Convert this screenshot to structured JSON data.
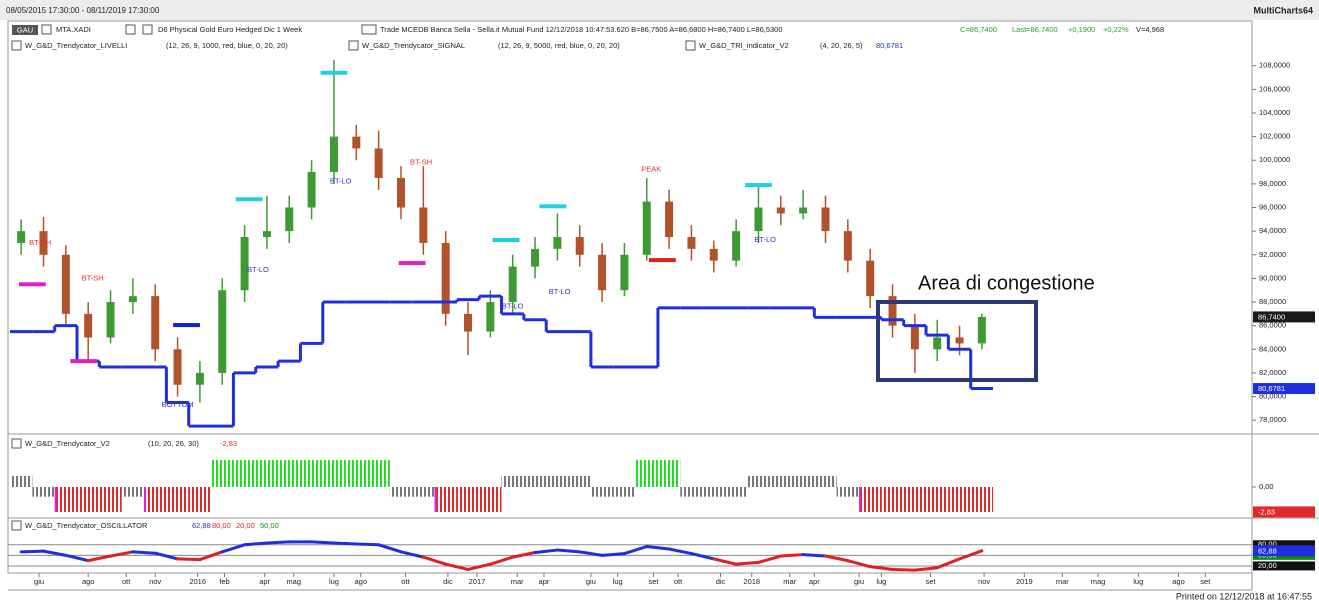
{
  "window": {
    "range": "08/05/2015 17:30:00 - 08/11/2019 17:30:00",
    "app": "MultiCharts64",
    "symbol_button": "GAU",
    "symbol": "MTA.XADI",
    "description": "D6 Physical Gold Euro Hedged Dic  1 Week",
    "quote": "Trade  MCEDB  Banca Sella - Sella.it  Mutual Fund  12/12/2018  10:47:53.620  B=86,7500  A=86,6800  H=86,7400  L=86,5300",
    "quote_close": "C=86,7400",
    "quote_last": "Last=86,7400",
    "quote_change": "+0,1900",
    "quote_pct": "+0,22%",
    "quote_volume": "V=4,968",
    "printed": "Printed on 12/12/2018 at 16:47:55"
  },
  "chart_data": [
    {
      "type": "candlestick",
      "callout": "Area di congestione",
      "studies": [
        {
          "name": "W_G&D_Trendycator_LIVELLI",
          "params": "(12, 26, 9, 1000, red, blue, 0, 20, 20)"
        },
        {
          "name": "W_G&D_Trendycator_SIGNAL",
          "params": "(12, 26, 9, 5000, red, blue, 0, 20, 20)"
        },
        {
          "name": "W_G&D_TRI_indicator_V2",
          "params": "(4, 20, 26, 5)",
          "value": "80,6781"
        }
      ],
      "xlim": [
        -0.5,
        55
      ],
      "xticks": [
        {
          "value": 0.8,
          "label": "giu"
        },
        {
          "value": 3.0,
          "label": "ago"
        },
        {
          "value": 4.7,
          "label": "ott"
        },
        {
          "value": 6.0,
          "label": "nov"
        },
        {
          "value": 7.9,
          "label": "2016"
        },
        {
          "value": 9.1,
          "label": "feb"
        },
        {
          "value": 10.9,
          "label": "apr"
        },
        {
          "value": 12.2,
          "label": "mag"
        },
        {
          "value": 14.0,
          "label": "lug"
        },
        {
          "value": 15.2,
          "label": "ago"
        },
        {
          "value": 17.2,
          "label": "ott"
        },
        {
          "value": 19.1,
          "label": "dic"
        },
        {
          "value": 20.4,
          "label": "2017"
        },
        {
          "value": 22.2,
          "label": "mar"
        },
        {
          "value": 23.4,
          "label": "apr"
        },
        {
          "value": 25.5,
          "label": "giu"
        },
        {
          "value": 26.7,
          "label": "lug"
        },
        {
          "value": 28.3,
          "label": "set"
        },
        {
          "value": 29.4,
          "label": "ott"
        },
        {
          "value": 31.3,
          "label": "dic"
        },
        {
          "value": 32.7,
          "label": "2018"
        },
        {
          "value": 34.4,
          "label": "mar"
        },
        {
          "value": 35.5,
          "label": "apr"
        },
        {
          "value": 37.5,
          "label": "giu"
        },
        {
          "value": 38.5,
          "label": "lug"
        },
        {
          "value": 40.7,
          "label": "set"
        },
        {
          "value": 43.1,
          "label": "nov"
        },
        {
          "value": 44.9,
          "label": "2019"
        },
        {
          "value": 46.6,
          "label": "mar"
        },
        {
          "value": 48.2,
          "label": "mag"
        },
        {
          "value": 50.0,
          "label": "lug"
        },
        {
          "value": 51.8,
          "label": "ago"
        },
        {
          "value": 53.0,
          "label": "set"
        }
      ],
      "ylim": [
        77,
        111.7
      ],
      "yticks": [
        {
          "value": 78,
          "label": "78,0000"
        },
        {
          "value": 80,
          "label": "80,0000"
        },
        {
          "value": 82,
          "label": "82,0000"
        },
        {
          "value": 84,
          "label": "84,0000"
        },
        {
          "value": 86,
          "label": "86,0000"
        },
        {
          "value": 88,
          "label": "88,0000"
        },
        {
          "value": 90,
          "label": "90,0000"
        },
        {
          "value": 92,
          "label": "92,0000"
        },
        {
          "value": 94,
          "label": "94,0000"
        },
        {
          "value": 96,
          "label": "96,0000"
        },
        {
          "value": 98,
          "label": "98,0000"
        },
        {
          "value": 100,
          "label": "100,0000"
        },
        {
          "value": 102,
          "label": "102,0000"
        },
        {
          "value": 104,
          "label": "104,0000"
        },
        {
          "value": 106,
          "label": "106,0000"
        },
        {
          "value": 108,
          "label": "108,0000"
        }
      ],
      "up_color": "#3f9a35",
      "down_color": "#b0532c",
      "open": [
        93,
        94,
        92,
        87,
        85,
        88,
        88.5,
        84,
        81,
        82,
        89,
        93.5,
        94,
        96,
        99,
        102,
        101,
        98.5,
        96,
        93,
        87,
        85.5,
        88,
        91,
        92.5,
        93.5,
        92,
        89,
        92,
        96.5,
        93.5,
        92.5,
        91.5,
        94,
        96,
        95.5,
        96,
        94,
        91.5,
        88.5,
        86,
        84,
        85,
        84.5
      ],
      "high": [
        95,
        95.2,
        92.8,
        88,
        89,
        90,
        89.5,
        85,
        83,
        90,
        94.5,
        97,
        97,
        100,
        108.5,
        103,
        102.5,
        99.5,
        99.5,
        94,
        88,
        89,
        92,
        93.5,
        95.5,
        94.5,
        93,
        93,
        98.5,
        97.5,
        94.5,
        93.2,
        95,
        98,
        97,
        97.5,
        97,
        95,
        92.5,
        89.5,
        87,
        86.5,
        86,
        87
      ],
      "low": [
        92,
        91,
        86,
        83,
        84.5,
        87,
        83,
        80,
        79.5,
        81,
        88,
        92.5,
        93,
        95,
        98,
        100,
        97.5,
        95,
        92,
        86,
        83.5,
        85,
        87,
        90,
        91.5,
        91,
        88,
        88.5,
        91.5,
        92.5,
        91.5,
        90.5,
        91,
        93,
        94.5,
        95,
        93,
        90.5,
        87.5,
        85,
        82,
        83,
        83.5,
        84
      ],
      "close": [
        94,
        92,
        87,
        85,
        88,
        88.5,
        84,
        81,
        82,
        89,
        93.5,
        94,
        96,
        99,
        102,
        101,
        98.5,
        96,
        93,
        87,
        85.5,
        88,
        91,
        92.5,
        93.5,
        92,
        89,
        92,
        96.5,
        93.5,
        92.5,
        91.5,
        94,
        96,
        95.5,
        96,
        94,
        91.5,
        88.5,
        86,
        84,
        85,
        84.5,
        86.74
      ],
      "trend": {
        "color": "#1f2fe0",
        "values": [
          85.5,
          85.5,
          86,
          83,
          82.5,
          82.5,
          82.5,
          79.5,
          77.5,
          77.5,
          82,
          82.5,
          83,
          84.5,
          88,
          88,
          88,
          88,
          88,
          88,
          88.2,
          88.5,
          87,
          86.5,
          85.5,
          85.5,
          82.5,
          82.5,
          82.5,
          87.5,
          87.5,
          87.5,
          87.5,
          87.5,
          87.5,
          87.5,
          86.7,
          86.7,
          86.7,
          86.5,
          86,
          85.2,
          84,
          80.6781
        ]
      },
      "markers": [
        {
          "x": 0.5,
          "y": 89.5,
          "color": "#e020c0"
        },
        {
          "x": 2.8,
          "y": 83.0,
          "color": "#e020c0"
        },
        {
          "x": 7.4,
          "y": 86.05,
          "color": "#1020d0"
        },
        {
          "x": 10.2,
          "y": 96.7,
          "color": "#20d0e0"
        },
        {
          "x": 14.0,
          "y": 107.4,
          "color": "#20d0e0"
        },
        {
          "x": 17.5,
          "y": 91.3,
          "color": "#e020c0"
        },
        {
          "x": 21.7,
          "y": 93.25,
          "color": "#20d0e0"
        },
        {
          "x": 23.8,
          "y": 96.1,
          "color": "#20d0e0"
        },
        {
          "x": 28.7,
          "y": 91.55,
          "color": "#e02020"
        },
        {
          "x": 33.0,
          "y": 97.9,
          "color": "#20d0e0"
        }
      ],
      "annotations": [
        {
          "text": "BT-SH",
          "x": 0.85,
          "y": 93.0,
          "color": "#e53030"
        },
        {
          "text": "BT-SH",
          "x": 3.2,
          "y": 90.0,
          "color": "#e53030"
        },
        {
          "text": "BOTTOM",
          "x": 7.0,
          "y": 79.3,
          "color": "#3030d0"
        },
        {
          "text": "BT-LO",
          "x": 10.6,
          "y": 90.7,
          "color": "#3030d0"
        },
        {
          "text": "BT-LO",
          "x": 14.3,
          "y": 98.2,
          "color": "#3030d0"
        },
        {
          "text": "BT-SH",
          "x": 17.9,
          "y": 99.8,
          "color": "#e53030"
        },
        {
          "text": "BT-LO",
          "x": 22.0,
          "y": 87.6,
          "color": "#3030d0"
        },
        {
          "text": "BT-LO",
          "x": 24.1,
          "y": 88.85,
          "color": "#3030d0"
        },
        {
          "text": "PEAK",
          "x": 28.2,
          "y": 99.2,
          "color": "#e53030"
        },
        {
          "text": "BT-LO",
          "x": 33.3,
          "y": 93.25,
          "color": "#3030d0"
        }
      ],
      "price_tags": [
        {
          "value": 86.74,
          "label": "86,7400",
          "color": "#1a1a1a"
        },
        {
          "value": 80.6781,
          "label": "80,6781",
          "color": "#1f2fe0"
        }
      ]
    },
    {
      "type": "histogram",
      "title": "W_G&D_Trendycator_V2",
      "params": "(10, 20, 26, 30)",
      "ylim": [
        -3.52,
        6.02
      ],
      "yticks": [
        {
          "value": 0,
          "label": "0,00"
        }
      ],
      "values": [
        1.25,
        -1.1,
        -2.83,
        -2.83,
        -2.83,
        -1.1,
        -2.83,
        -2.83,
        -2.83,
        3.07,
        3.07,
        3.07,
        3.07,
        3.07,
        3.07,
        3.07,
        3.07,
        -1.1,
        -1.1,
        -2.83,
        -2.83,
        -2.83,
        1.25,
        1.25,
        1.25,
        1.25,
        -1.1,
        -1.1,
        3.07,
        3.07,
        -1.1,
        -1.1,
        -1.1,
        1.25,
        1.25,
        1.25,
        1.25,
        -1.1,
        -2.83,
        -2.83,
        -2.83,
        -2.83,
        -2.83,
        -2.83
      ],
      "colors": [
        "#777777",
        "#777777",
        "#e02828",
        "#e02828",
        "#e02828",
        "#777777",
        "#e02828",
        "#e02828",
        "#e02828",
        "#22dd22",
        "#22dd22",
        "#22dd22",
        "#22dd22",
        "#22dd22",
        "#22dd22",
        "#22dd22",
        "#22dd22",
        "#777777",
        "#777777",
        "#e02828",
        "#e02828",
        "#e02828",
        "#777777",
        "#777777",
        "#777777",
        "#777777",
        "#777777",
        "#777777",
        "#22dd22",
        "#22dd22",
        "#777777",
        "#777777",
        "#777777",
        "#777777",
        "#777777",
        "#777777",
        "#777777",
        "#777777",
        "#e02828",
        "#e02828",
        "#e02828",
        "#e02828",
        "#e02828",
        "#e02828"
      ],
      "transition_color": "#e020e0",
      "tags": [
        {
          "value": -2.83,
          "label": "-2,83",
          "color": "#e02828"
        }
      ]
    },
    {
      "type": "line",
      "title": "W_G&D_Trendycator_OSCILLATOR",
      "ylim": [
        0,
        155.8
      ],
      "yticks": [
        {
          "value": 20,
          "label": "20,00"
        },
        {
          "value": 50,
          "label": "50,00"
        },
        {
          "value": 80,
          "label": "80,00"
        }
      ],
      "ytick_colors": [
        "#111111",
        "#0a8a0a",
        "#111111"
      ],
      "up_color": "#1f2fe0",
      "down_color": "#e02020",
      "values": [
        60,
        62,
        50,
        35,
        48,
        60,
        56,
        40,
        38,
        60,
        80,
        85,
        88,
        88,
        85,
        82,
        80,
        60,
        45,
        25,
        10,
        25,
        45,
        58,
        65,
        60,
        50,
        55,
        75,
        68,
        55,
        40,
        25,
        30,
        48,
        52,
        48,
        35,
        18,
        10,
        8,
        15,
        40,
        62.88
      ],
      "tags": [
        {
          "value": 62.88,
          "label": "62,88",
          "color": "#1f2fe0"
        }
      ]
    }
  ]
}
